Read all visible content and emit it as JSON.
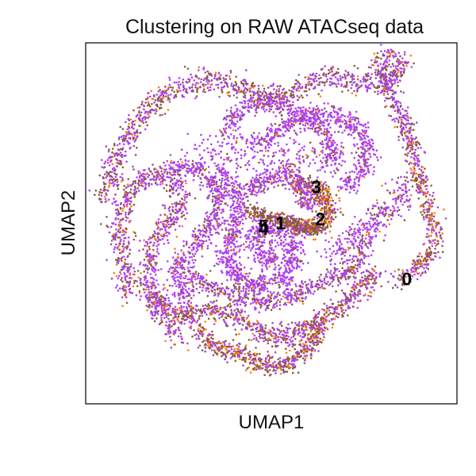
{
  "chart_data": {
    "type": "scatter",
    "title": "Clustering on RAW ATACseq data",
    "xlabel": "UMAP1",
    "ylabel": "UMAP2",
    "xlim": [
      0,
      100
    ],
    "ylim": [
      0,
      100
    ],
    "grid": false,
    "ticks": false,
    "colors": {
      "purple": "#b040f0",
      "brown": "#8b5a3c",
      "orange": "#ff7f0e"
    },
    "cluster_labels": [
      {
        "text": "0",
        "x": 86.5,
        "y": 34.2
      },
      {
        "text": "1",
        "x": 52.5,
        "y": 49.7
      },
      {
        "text": "2",
        "x": 63.2,
        "y": 50.8
      },
      {
        "text": "3",
        "x": 62.1,
        "y": 59.7
      },
      {
        "text": "4",
        "x": 47.9,
        "y": 48.2
      },
      {
        "text": "5",
        "x": 47.9,
        "y": 48.8
      }
    ]
  }
}
